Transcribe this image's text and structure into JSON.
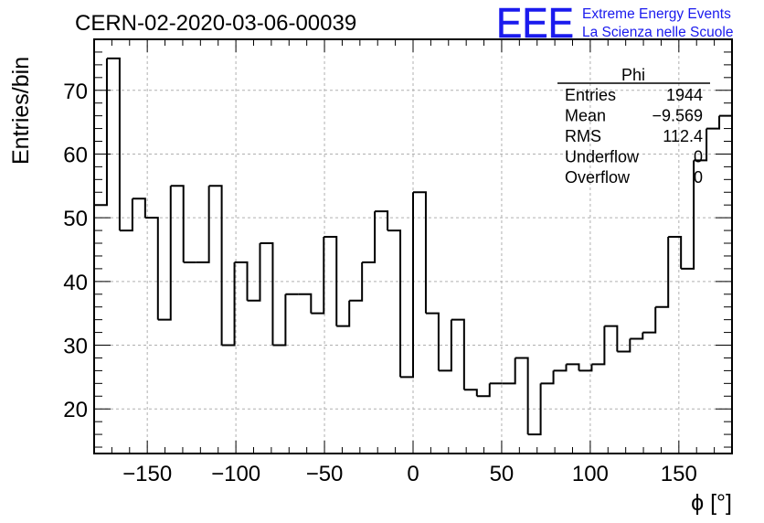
{
  "chart_data": {
    "type": "histogram",
    "title": "CERN-02-2020-03-06-00039",
    "xlabel": "ϕ [°]",
    "ylabel": "Entries/bin",
    "xlim": [
      -180,
      180
    ],
    "ylim": [
      13,
      78
    ],
    "x_ticks": [
      -150,
      -100,
      -50,
      0,
      50,
      100,
      150
    ],
    "y_ticks": [
      20,
      30,
      40,
      50,
      60,
      70
    ],
    "grid": true,
    "bin_edges_start": -180,
    "bin_width": 7.2,
    "values": [
      52,
      75,
      48,
      53,
      50,
      34,
      55,
      43,
      43,
      55,
      30,
      43,
      37,
      46,
      30,
      38,
      38,
      35,
      47,
      33,
      37,
      43,
      51,
      48,
      25,
      54,
      35,
      26,
      34,
      23,
      22,
      24,
      24,
      28,
      16,
      24,
      26,
      27,
      26,
      27,
      33,
      29,
      31,
      32,
      36,
      47,
      42,
      59,
      64,
      66
    ],
    "stats": {
      "title": "Phi",
      "rows": [
        {
          "label": "Entries",
          "value": "1944"
        },
        {
          "label": "Mean",
          "value": "−9.569"
        },
        {
          "label": "RMS",
          "value": "112.4"
        },
        {
          "label": "Underflow",
          "value": "0"
        },
        {
          "label": "Overflow",
          "value": "0"
        }
      ]
    }
  },
  "logo": {
    "mark": "EEE",
    "line1": "Extreme Energy Events",
    "line2": "La Scienza nelle Scuole",
    "color": "#1a1aee"
  }
}
